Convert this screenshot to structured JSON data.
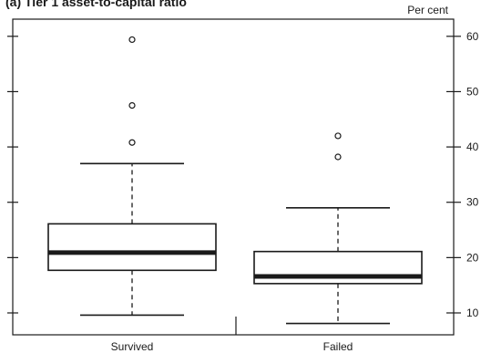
{
  "chart_data": {
    "type": "boxplot",
    "title": "(a) Tier 1 asset-to-capital ratio",
    "ylabel": "Per cent",
    "ylim": [
      6,
      62
    ],
    "yticks": [
      10,
      20,
      30,
      40,
      50,
      60
    ],
    "ytick_labels": [
      "10",
      "20",
      "30",
      "40",
      "50",
      "60"
    ],
    "categories": [
      "Survived",
      "Failed"
    ],
    "boxes": [
      {
        "category": "Survived",
        "min": 9.6,
        "q1": 17.7,
        "median": 20.9,
        "q3": 26.1,
        "max": 37.0,
        "outliers": [
          40.8,
          47.5,
          59.4
        ]
      },
      {
        "category": "Failed",
        "min": 8.1,
        "q1": 15.3,
        "median": 16.6,
        "q3": 21.1,
        "max": 29.0,
        "outliers": [
          38.2,
          42.0
        ]
      }
    ]
  }
}
